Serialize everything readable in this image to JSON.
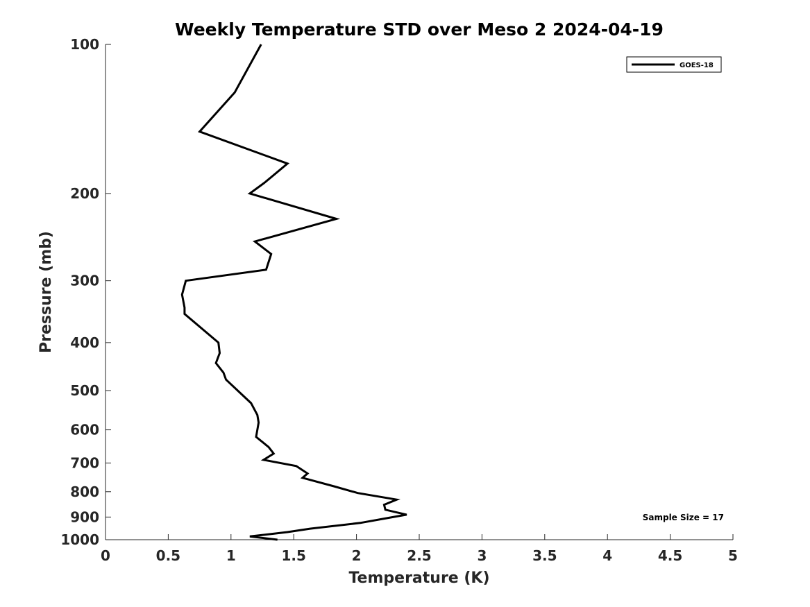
{
  "chart_data": {
    "type": "line",
    "title": "Weekly Temperature STD over Meso 2 2024-04-19",
    "xlabel": "Temperature (K)",
    "ylabel": "Pressure (mb)",
    "xlim": [
      0,
      5
    ],
    "ylim": [
      100,
      1000
    ],
    "yscale": "log",
    "y_reversed": true,
    "grid": false,
    "legend_position": "top-right",
    "x_ticks": [
      0,
      0.5,
      1,
      1.5,
      2,
      2.5,
      3,
      3.5,
      4,
      4.5,
      5
    ],
    "x_tick_labels": [
      "0",
      "0.5",
      "1",
      "1.5",
      "2",
      "2.5",
      "3",
      "3.5",
      "4",
      "4.5",
      "5"
    ],
    "y_ticks": [
      100,
      200,
      300,
      400,
      500,
      600,
      700,
      800,
      900,
      1000
    ],
    "y_tick_labels": [
      "100",
      "200",
      "300",
      "400",
      "500",
      "600",
      "700",
      "800",
      "900",
      "1000"
    ],
    "annotation": "Sample Size = 17",
    "series": [
      {
        "name": "GOES-18",
        "color": "#000000",
        "points": [
          [
            1.24,
            100
          ],
          [
            1.03,
            125
          ],
          [
            0.75,
            150
          ],
          [
            1.45,
            174
          ],
          [
            1.27,
            190
          ],
          [
            1.15,
            200
          ],
          [
            1.84,
            225
          ],
          [
            1.19,
            250
          ],
          [
            1.32,
            265
          ],
          [
            1.28,
            285
          ],
          [
            0.64,
            300
          ],
          [
            0.61,
            320
          ],
          [
            0.63,
            340
          ],
          [
            0.63,
            350
          ],
          [
            0.9,
            400
          ],
          [
            0.91,
            420
          ],
          [
            0.88,
            440
          ],
          [
            0.94,
            460
          ],
          [
            0.96,
            475
          ],
          [
            1.16,
            530
          ],
          [
            1.21,
            560
          ],
          [
            1.22,
            580
          ],
          [
            1.2,
            620
          ],
          [
            1.3,
            650
          ],
          [
            1.34,
            670
          ],
          [
            1.26,
            690
          ],
          [
            1.52,
            710
          ],
          [
            1.61,
            735
          ],
          [
            1.57,
            750
          ],
          [
            1.82,
            780
          ],
          [
            2.01,
            805
          ],
          [
            2.32,
            830
          ],
          [
            2.22,
            850
          ],
          [
            2.23,
            870
          ],
          [
            2.4,
            890
          ],
          [
            2.24,
            905
          ],
          [
            2.03,
            925
          ],
          [
            1.63,
            950
          ],
          [
            1.45,
            965
          ],
          [
            1.15,
            985
          ],
          [
            1.37,
            1000
          ]
        ]
      }
    ]
  }
}
